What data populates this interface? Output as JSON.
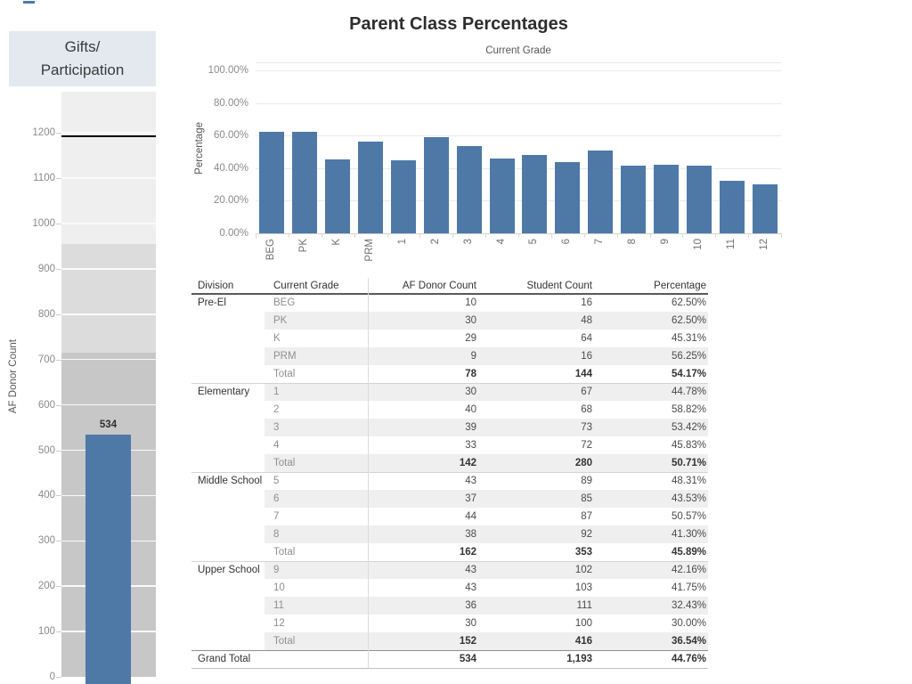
{
  "title": "Parent Class Percentages",
  "left_panel": {
    "title_lines": [
      "Gifts/",
      "Participation"
    ]
  },
  "colors": {
    "bar_blue": "#4e79a7",
    "band_dark": "#c7c7c7",
    "band_mid": "#dcdcdc",
    "band_light": "#efefef",
    "reference_line": "#000000",
    "gridline_main": "#eaeaea",
    "axis_line": "#d0d0d0",
    "panel_header_bg": "#e3e9ef",
    "row_band": "#efefef"
  },
  "chart_data": [
    {
      "id": "donor-count-chart",
      "type": "bar",
      "title": "Gifts/Participation",
      "ylabel": "AF Donor Count",
      "categories": [
        ""
      ],
      "values": [
        534
      ],
      "bar_label": "534",
      "ylim": [
        0,
        1292
      ],
      "yticks": [
        "0",
        "100",
        "200",
        "300",
        "400",
        "500",
        "600",
        "700",
        "800",
        "900",
        "1000",
        "1100",
        "1200"
      ],
      "ytick_values": [
        0,
        100,
        200,
        300,
        400,
        500,
        600,
        700,
        800,
        900,
        1000,
        1100,
        1200
      ],
      "reference_line": 1193,
      "reference_bands": [
        {
          "from": 0,
          "to": 716,
          "color": "#c7c7c7"
        },
        {
          "from": 716,
          "to": 954,
          "color": "#dcdcdc"
        },
        {
          "from": 954,
          "to": 1292,
          "color": "#efefef"
        }
      ],
      "bar_color": "#4e79a7",
      "grid": "white gridlines every 100",
      "legend": "none"
    },
    {
      "id": "parent-class-percentages",
      "type": "bar",
      "title": "Current Grade",
      "ylabel": "Percentage",
      "categories": [
        "BEG",
        "PK",
        "K",
        "PRM",
        "1",
        "2",
        "3",
        "4",
        "5",
        "6",
        "7",
        "8",
        "9",
        "10",
        "11",
        "12"
      ],
      "values": [
        62.5,
        62.5,
        45.31,
        56.25,
        44.78,
        58.82,
        53.42,
        45.83,
        48.31,
        43.53,
        50.57,
        41.3,
        42.16,
        41.75,
        32.43,
        30.0
      ],
      "labels": [
        "62.50%",
        "62.50%",
        "45.31%",
        "56.25%",
        "44.78%",
        "58.82%",
        "53.42%",
        "45.83%",
        "48.31%",
        "43.53%",
        "50.57%",
        "41.30%",
        "42.16%",
        "41.75%",
        "32.43%",
        "30.00%"
      ],
      "yticks": [
        "0.00%",
        "20.00%",
        "40.00%",
        "60.00%",
        "80.00%",
        "100.00%"
      ],
      "ytick_values": [
        0,
        20,
        40,
        60,
        80,
        100
      ],
      "ylim": [
        0,
        100
      ],
      "bar_color": "#4e79a7",
      "grid": "horizontal light gray every 20%",
      "legend": "none"
    },
    {
      "id": "division-table",
      "type": "table",
      "columns": [
        "Division",
        "Current Grade",
        "AF Donor Count",
        "Student Count",
        "Percentage"
      ],
      "groups": [
        {
          "division": "Pre-El",
          "rows": [
            [
              "BEG",
              "10",
              "16",
              "62.50%"
            ],
            [
              "PK",
              "30",
              "48",
              "62.50%"
            ],
            [
              "K",
              "29",
              "64",
              "45.31%"
            ],
            [
              "PRM",
              "9",
              "16",
              "56.25%"
            ]
          ],
          "total": [
            "Total",
            "78",
            "144",
            "54.17%"
          ]
        },
        {
          "division": "Elementary",
          "rows": [
            [
              "1",
              "30",
              "67",
              "44.78%"
            ],
            [
              "2",
              "40",
              "68",
              "58.82%"
            ],
            [
              "3",
              "39",
              "73",
              "53.42%"
            ],
            [
              "4",
              "33",
              "72",
              "45.83%"
            ]
          ],
          "total": [
            "Total",
            "142",
            "280",
            "50.71%"
          ]
        },
        {
          "division": "Middle School",
          "rows": [
            [
              "5",
              "43",
              "89",
              "48.31%"
            ],
            [
              "6",
              "37",
              "85",
              "43.53%"
            ],
            [
              "7",
              "44",
              "87",
              "50.57%"
            ],
            [
              "8",
              "38",
              "92",
              "41.30%"
            ]
          ],
          "total": [
            "Total",
            "162",
            "353",
            "45.89%"
          ]
        },
        {
          "division": "Upper School",
          "rows": [
            [
              "9",
              "43",
              "102",
              "42.16%"
            ],
            [
              "10",
              "43",
              "103",
              "41.75%"
            ],
            [
              "11",
              "36",
              "111",
              "32.43%"
            ],
            [
              "12",
              "30",
              "100",
              "30.00%"
            ]
          ],
          "total": [
            "Total",
            "152",
            "416",
            "36.54%"
          ]
        }
      ],
      "grand_total": [
        "Grand Total",
        "534",
        "1,193",
        "44.76%"
      ]
    }
  ]
}
